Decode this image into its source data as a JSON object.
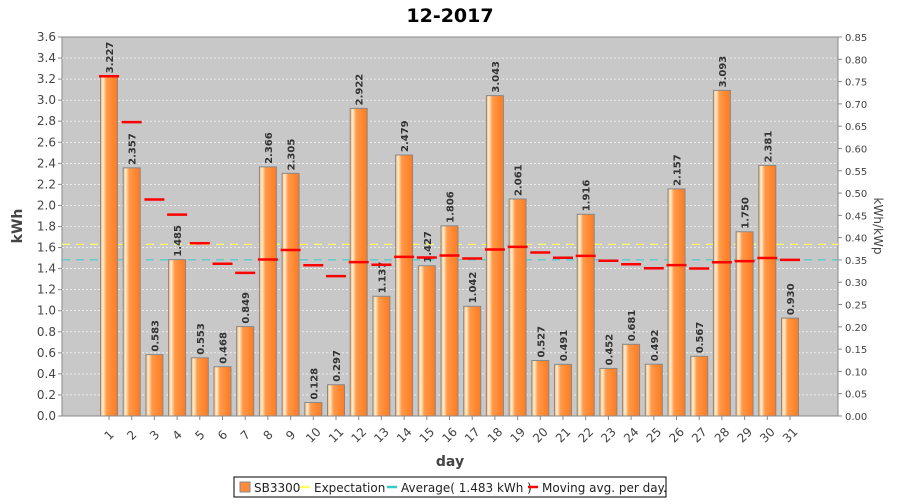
{
  "chart_data": {
    "type": "bar",
    "title": "12-2017",
    "xlabel": "day",
    "ylabel": "kWh",
    "ylabel_right": "kWh/kWp",
    "ylim": [
      0,
      3.6
    ],
    "ylim_right": [
      0,
      0.85
    ],
    "grid": true,
    "legend_position": "bottom",
    "categories": [
      "1",
      "2",
      "3",
      "4",
      "5",
      "6",
      "7",
      "8",
      "9",
      "10",
      "11",
      "12",
      "13",
      "14",
      "15",
      "16",
      "17",
      "18",
      "19",
      "20",
      "21",
      "22",
      "23",
      "24",
      "25",
      "26",
      "27",
      "28",
      "29",
      "30",
      "31"
    ],
    "yticks": [
      "0.0",
      "0.2",
      "0.4",
      "0.6",
      "0.8",
      "1.0",
      "1.2",
      "1.4",
      "1.6",
      "1.8",
      "2.0",
      "2.2",
      "2.4",
      "2.6",
      "2.8",
      "3.0",
      "3.2",
      "3.4",
      "3.6"
    ],
    "yticks_right": [
      "0.00",
      "0.05",
      "0.10",
      "0.15",
      "0.20",
      "0.25",
      "0.30",
      "0.35",
      "0.40",
      "0.45",
      "0.50",
      "0.55",
      "0.60",
      "0.65",
      "0.70",
      "0.75",
      "0.80",
      "0.85"
    ],
    "series": [
      {
        "name": "SB3300",
        "type": "bar",
        "color": "#ff8c3c",
        "values": [
          3.227,
          2.357,
          0.583,
          1.485,
          0.553,
          0.468,
          0.849,
          2.366,
          2.305,
          0.128,
          0.297,
          2.922,
          1.137,
          2.479,
          1.427,
          1.806,
          1.042,
          3.043,
          2.061,
          0.527,
          0.491,
          1.916,
          0.452,
          0.681,
          0.492,
          2.157,
          0.567,
          3.093,
          1.75,
          2.381,
          0.93
        ],
        "labels": [
          "3.227",
          "2.357",
          "0.583",
          "1.485",
          "0.553",
          "0.468",
          "0.849",
          "2.366",
          "2.305",
          "0.128",
          "0.297",
          "2.922",
          "1.137",
          "2.479",
          "1.427",
          "1.806",
          "1.042",
          "3.043",
          "2.061",
          "0.527",
          "0.491",
          "1.916",
          "0.452",
          "0.681",
          "0.492",
          "2.157",
          "0.567",
          "3.093",
          "1.750",
          "2.381",
          "0.930"
        ]
      },
      {
        "name": "Expectation",
        "type": "line",
        "color": "#ffff66",
        "value": 1.63
      },
      {
        "name": "Average( 1.483 kWh )",
        "type": "line",
        "color": "#33cccc",
        "value": 1.483
      },
      {
        "name": "Moving avg. per day.",
        "type": "step",
        "color": "#ff0000",
        "values": [
          3.227,
          2.792,
          2.056,
          1.913,
          1.641,
          1.446,
          1.36,
          1.486,
          1.577,
          1.432,
          1.329,
          1.462,
          1.437,
          1.511,
          1.506,
          1.524,
          1.496,
          1.582,
          1.607,
          1.553,
          1.503,
          1.521,
          1.475,
          1.442,
          1.404,
          1.433,
          1.401,
          1.461,
          1.471,
          1.501,
          1.483
        ]
      }
    ]
  }
}
